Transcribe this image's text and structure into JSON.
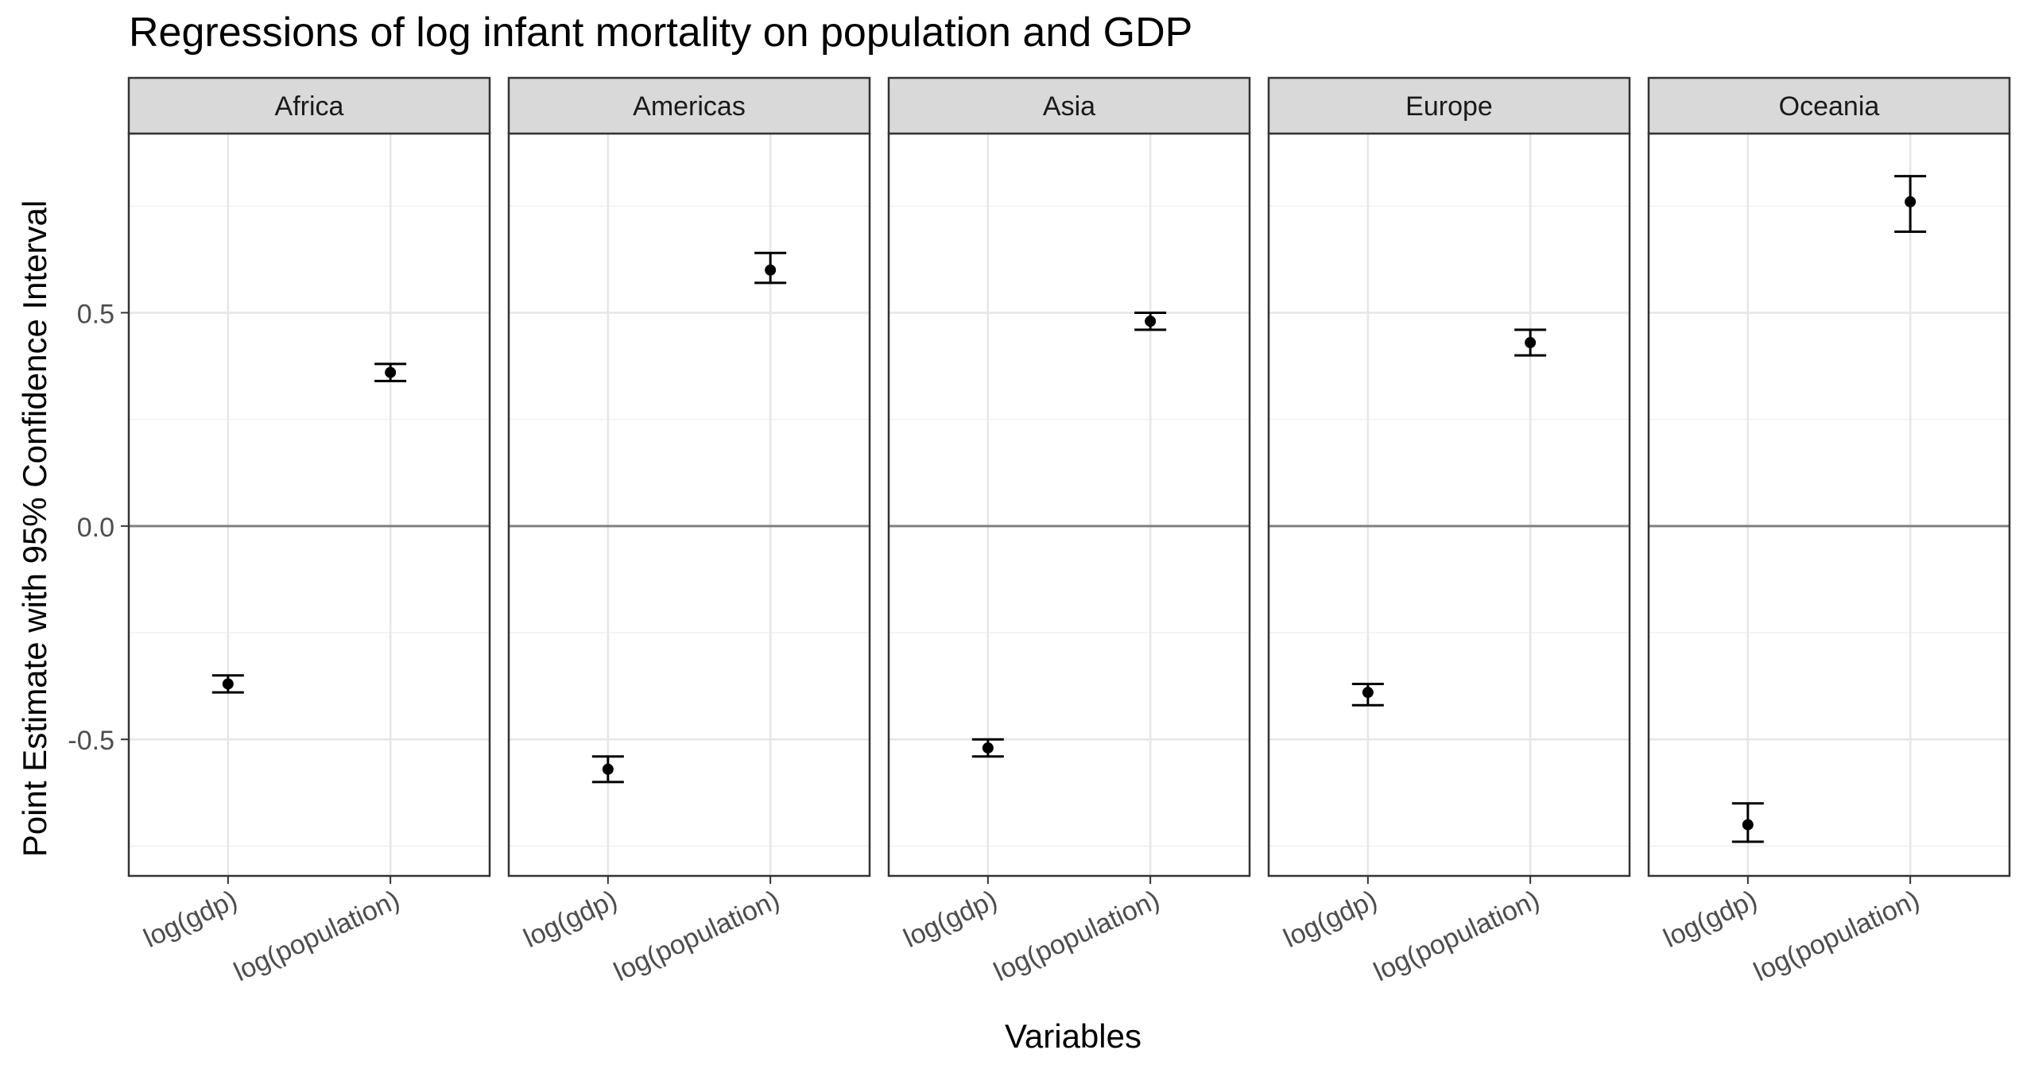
{
  "chart_data": {
    "type": "scatter",
    "title": "Regressions of log infant mortality on population and GDP",
    "xlabel": "Variables",
    "ylabel": "Point Estimate with 95% Confidence Interval",
    "ylim": [
      -0.82,
      0.92
    ],
    "yticks": [
      -0.5,
      0.0,
      0.5
    ],
    "ytick_labels": [
      "-0.5",
      "0.0",
      "0.5"
    ],
    "minor_yticks": [
      -0.75,
      -0.25,
      0.25,
      0.75
    ],
    "reference_line_y": 0,
    "grid": true,
    "categories": [
      "log(gdp)",
      "log(population)"
    ],
    "panels": [
      {
        "label": "Africa",
        "points": [
          {
            "x": "log(gdp)",
            "y": -0.37,
            "ymin": -0.39,
            "ymax": -0.35
          },
          {
            "x": "log(population)",
            "y": 0.36,
            "ymin": 0.34,
            "ymax": 0.38
          }
        ]
      },
      {
        "label": "Americas",
        "points": [
          {
            "x": "log(gdp)",
            "y": -0.57,
            "ymin": -0.6,
            "ymax": -0.54
          },
          {
            "x": "log(population)",
            "y": 0.6,
            "ymin": 0.57,
            "ymax": 0.64
          }
        ]
      },
      {
        "label": "Asia",
        "points": [
          {
            "x": "log(gdp)",
            "y": -0.52,
            "ymin": -0.54,
            "ymax": -0.5
          },
          {
            "x": "log(population)",
            "y": 0.48,
            "ymin": 0.46,
            "ymax": 0.5
          }
        ]
      },
      {
        "label": "Europe",
        "points": [
          {
            "x": "log(gdp)",
            "y": -0.39,
            "ymin": -0.42,
            "ymax": -0.37
          },
          {
            "x": "log(population)",
            "y": 0.43,
            "ymin": 0.4,
            "ymax": 0.46
          }
        ]
      },
      {
        "label": "Oceania",
        "points": [
          {
            "x": "log(gdp)",
            "y": -0.7,
            "ymin": -0.74,
            "ymax": -0.65
          },
          {
            "x": "log(population)",
            "y": 0.76,
            "ymin": 0.69,
            "ymax": 0.82
          }
        ]
      }
    ]
  }
}
